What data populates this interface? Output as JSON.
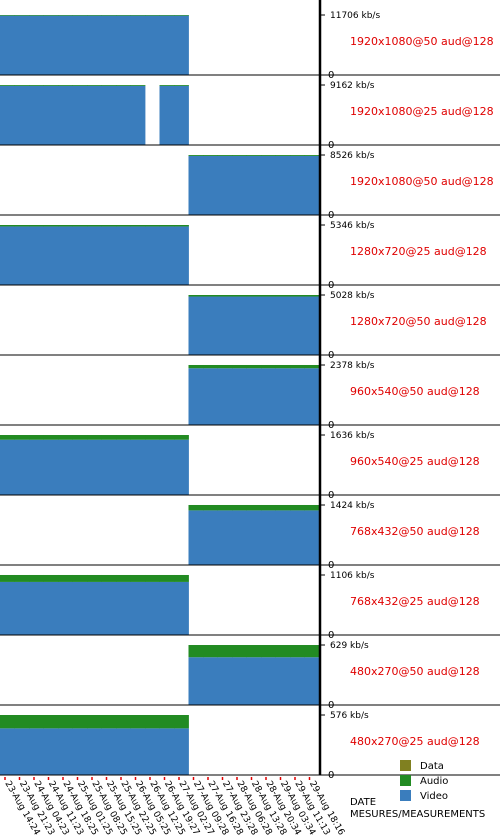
{
  "chart_data": {
    "type": "stacked-bar-panels",
    "x_label": "DATE",
    "y_label": "MESURES/MEASUREMENTS",
    "categories": [
      "23-Aug 14:24",
      "23-Aug 21:23",
      "24-Aug 04:23",
      "24-Aug 11:23",
      "24-Aug 18:25",
      "25-Aug 01:25",
      "25-Aug 08:25",
      "25-Aug 15:25",
      "25-Aug 22:25",
      "26-Aug 05:25",
      "26-Aug 12:25",
      "26-Aug 19:27",
      "27-Aug 02:27",
      "27-Aug 09:28",
      "27-Aug 16:28",
      "27-Aug 23:28",
      "28-Aug 06:28",
      "28-Aug 13:28",
      "28-Aug 20:34",
      "29-Aug 03:34",
      "29-Aug 11:13",
      "29-Aug 18:16"
    ],
    "legend": [
      {
        "name": "Data",
        "color": "#808020"
      },
      {
        "name": "Audio",
        "color": "#228b22"
      },
      {
        "name": "Video",
        "color": "#3a7dbd"
      }
    ],
    "panels": [
      {
        "label": "1920x1080@50 aud@128",
        "ylim": [
          0,
          13657
        ],
        "yticks": [
          0,
          {
            "value": 11706,
            "label": "11706 kb/s"
          }
        ],
        "series": [
          {
            "values": [
              0,
              0,
              0,
              0,
              0,
              0,
              0,
              0,
              0,
              0,
              0,
              0,
              0,
              null,
              null,
              null,
              null,
              null,
              null,
              null,
              null,
              null
            ]
          },
          {
            "values": [
              128,
              128,
              128,
              128,
              128,
              128,
              128,
              128,
              128,
              128,
              128,
              128,
              128,
              null,
              null,
              null,
              null,
              null,
              null,
              null,
              null,
              null
            ]
          },
          {
            "values": [
              11578,
              11578,
              11578,
              11578,
              11578,
              11578,
              11578,
              11578,
              11578,
              11578,
              11578,
              11578,
              11578,
              null,
              null,
              null,
              null,
              null,
              null,
              null,
              null,
              null
            ]
          }
        ]
      },
      {
        "label": "1920x1080@25 aud@128",
        "ylim": [
          0,
          10689
        ],
        "yticks": [
          0,
          {
            "value": 9162,
            "label": "9162 kb/s"
          }
        ],
        "series": [
          {
            "values": [
              0,
              0,
              0,
              0,
              0,
              0,
              0,
              0,
              0,
              0,
              null,
              0,
              0,
              null,
              null,
              null,
              null,
              null,
              null,
              null,
              null,
              null
            ]
          },
          {
            "values": [
              128,
              128,
              128,
              128,
              128,
              128,
              128,
              128,
              128,
              128,
              null,
              128,
              128,
              null,
              null,
              null,
              null,
              null,
              null,
              null,
              null,
              null
            ]
          },
          {
            "values": [
              9034,
              9034,
              9034,
              9034,
              9034,
              9034,
              9034,
              9034,
              9034,
              9034,
              null,
              9034,
              9034,
              null,
              null,
              null,
              null,
              null,
              null,
              null,
              null,
              null
            ]
          }
        ]
      },
      {
        "label": "1920x1080@50 aud@128",
        "ylim": [
          0,
          9947
        ],
        "yticks": [
          0,
          {
            "value": 8526,
            "label": "8526 kb/s"
          }
        ],
        "series": [
          {
            "values": [
              null,
              null,
              null,
              null,
              null,
              null,
              null,
              null,
              null,
              null,
              null,
              null,
              null,
              0,
              0,
              0,
              0,
              0,
              0,
              0,
              0,
              0
            ]
          },
          {
            "values": [
              null,
              null,
              null,
              null,
              null,
              null,
              null,
              null,
              null,
              null,
              null,
              null,
              null,
              128,
              128,
              128,
              128,
              128,
              128,
              128,
              128,
              128
            ]
          },
          {
            "values": [
              null,
              null,
              null,
              null,
              null,
              null,
              null,
              null,
              null,
              null,
              null,
              null,
              null,
              8398,
              8398,
              8398,
              8398,
              8398,
              8398,
              8398,
              8398,
              8398
            ]
          }
        ]
      },
      {
        "label": "1280x720@25 aud@128",
        "ylim": [
          0,
          6237
        ],
        "yticks": [
          0,
          {
            "value": 5346,
            "label": "5346 kb/s"
          }
        ],
        "series": [
          {
            "values": [
              0,
              0,
              0,
              0,
              0,
              0,
              0,
              0,
              0,
              0,
              0,
              0,
              0,
              null,
              null,
              null,
              null,
              null,
              null,
              null,
              null,
              null
            ]
          },
          {
            "values": [
              128,
              128,
              128,
              128,
              128,
              128,
              128,
              128,
              128,
              128,
              128,
              128,
              128,
              null,
              null,
              null,
              null,
              null,
              null,
              null,
              null,
              null
            ]
          },
          {
            "values": [
              5218,
              5218,
              5218,
              5218,
              5218,
              5218,
              5218,
              5218,
              5218,
              5218,
              5218,
              5218,
              5218,
              null,
              null,
              null,
              null,
              null,
              null,
              null,
              null,
              null
            ]
          }
        ]
      },
      {
        "label": "1280x720@50 aud@128",
        "ylim": [
          0,
          5866
        ],
        "yticks": [
          0,
          {
            "value": 5028,
            "label": "5028 kb/s"
          }
        ],
        "series": [
          {
            "values": [
              null,
              null,
              null,
              null,
              null,
              null,
              null,
              null,
              null,
              null,
              null,
              null,
              null,
              0,
              0,
              0,
              0,
              0,
              0,
              0,
              0,
              0
            ]
          },
          {
            "values": [
              null,
              null,
              null,
              null,
              null,
              null,
              null,
              null,
              null,
              null,
              null,
              null,
              null,
              128,
              128,
              128,
              128,
              128,
              128,
              128,
              128,
              128
            ]
          },
          {
            "values": [
              null,
              null,
              null,
              null,
              null,
              null,
              null,
              null,
              null,
              null,
              null,
              null,
              null,
              4900,
              4900,
              4900,
              4900,
              4900,
              4900,
              4900,
              4900,
              4900
            ]
          }
        ]
      },
      {
        "label": "960x540@50 aud@128",
        "ylim": [
          0,
          2774
        ],
        "yticks": [
          0,
          {
            "value": 2378,
            "label": "2378 kb/s"
          }
        ],
        "series": [
          {
            "values": [
              null,
              null,
              null,
              null,
              null,
              null,
              null,
              null,
              null,
              null,
              null,
              null,
              null,
              0,
              0,
              0,
              0,
              0,
              0,
              0,
              0,
              0
            ]
          },
          {
            "values": [
              null,
              null,
              null,
              null,
              null,
              null,
              null,
              null,
              null,
              null,
              null,
              null,
              null,
              128,
              128,
              128,
              128,
              128,
              128,
              128,
              128,
              128
            ]
          },
          {
            "values": [
              null,
              null,
              null,
              null,
              null,
              null,
              null,
              null,
              null,
              null,
              null,
              null,
              null,
              2250,
              2250,
              2250,
              2250,
              2250,
              2250,
              2250,
              2250,
              2250
            ]
          }
        ]
      },
      {
        "label": "960x540@25 aud@128",
        "ylim": [
          0,
          1909
        ],
        "yticks": [
          0,
          {
            "value": 1636,
            "label": "1636 kb/s"
          }
        ],
        "series": [
          {
            "values": [
              0,
              0,
              0,
              0,
              0,
              0,
              0,
              0,
              0,
              0,
              0,
              0,
              0,
              null,
              null,
              null,
              null,
              null,
              null,
              null,
              null,
              null
            ]
          },
          {
            "values": [
              128,
              128,
              128,
              128,
              128,
              128,
              128,
              128,
              128,
              128,
              128,
              128,
              128,
              null,
              null,
              null,
              null,
              null,
              null,
              null,
              null,
              null
            ]
          },
          {
            "values": [
              1508,
              1508,
              1508,
              1508,
              1508,
              1508,
              1508,
              1508,
              1508,
              1508,
              1508,
              1508,
              1508,
              null,
              null,
              null,
              null,
              null,
              null,
              null,
              null,
              null
            ]
          }
        ]
      },
      {
        "label": "768x432@50 aud@128",
        "ylim": [
          0,
          1661
        ],
        "yticks": [
          0,
          {
            "value": 1424,
            "label": "1424 kb/s"
          }
        ],
        "series": [
          {
            "values": [
              null,
              null,
              null,
              null,
              null,
              null,
              null,
              null,
              null,
              null,
              null,
              null,
              null,
              0,
              0,
              0,
              0,
              0,
              0,
              0,
              0,
              0
            ]
          },
          {
            "values": [
              null,
              null,
              null,
              null,
              null,
              null,
              null,
              null,
              null,
              null,
              null,
              null,
              null,
              128,
              128,
              128,
              128,
              128,
              128,
              128,
              128,
              128
            ]
          },
          {
            "values": [
              null,
              null,
              null,
              null,
              null,
              null,
              null,
              null,
              null,
              null,
              null,
              null,
              null,
              1296,
              1296,
              1296,
              1296,
              1296,
              1296,
              1296,
              1296,
              1296
            ]
          }
        ]
      },
      {
        "label": "768x432@25 aud@128",
        "ylim": [
          0,
          1290
        ],
        "yticks": [
          0,
          {
            "value": 1106,
            "label": "1106 kb/s"
          }
        ],
        "series": [
          {
            "values": [
              0,
              0,
              0,
              0,
              0,
              0,
              0,
              0,
              0,
              0,
              0,
              0,
              0,
              null,
              null,
              null,
              null,
              null,
              null,
              null,
              null,
              null
            ]
          },
          {
            "values": [
              128,
              128,
              128,
              128,
              128,
              128,
              128,
              128,
              128,
              128,
              128,
              128,
              128,
              null,
              null,
              null,
              null,
              null,
              null,
              null,
              null,
              null
            ]
          },
          {
            "values": [
              978,
              978,
              978,
              978,
              978,
              978,
              978,
              978,
              978,
              978,
              978,
              978,
              978,
              null,
              null,
              null,
              null,
              null,
              null,
              null,
              null,
              null
            ]
          }
        ]
      },
      {
        "label": "480x270@50 aud@128",
        "ylim": [
          0,
          734
        ],
        "yticks": [
          0,
          {
            "value": 629,
            "label": "629 kb/s"
          }
        ],
        "series": [
          {
            "values": [
              null,
              null,
              null,
              null,
              null,
              null,
              null,
              null,
              null,
              null,
              null,
              null,
              null,
              0,
              0,
              0,
              0,
              0,
              0,
              0,
              0,
              0
            ]
          },
          {
            "values": [
              null,
              null,
              null,
              null,
              null,
              null,
              null,
              null,
              null,
              null,
              null,
              null,
              null,
              128,
              128,
              128,
              128,
              128,
              128,
              128,
              128,
              128
            ]
          },
          {
            "values": [
              null,
              null,
              null,
              null,
              null,
              null,
              null,
              null,
              null,
              null,
              null,
              null,
              null,
              501,
              501,
              501,
              501,
              501,
              501,
              501,
              501,
              501
            ]
          }
        ]
      },
      {
        "label": "480x270@25 aud@128",
        "ylim": [
          0,
          672
        ],
        "yticks": [
          0,
          {
            "value": 576,
            "label": "576 kb/s"
          }
        ],
        "series": [
          {
            "values": [
              0,
              0,
              0,
              0,
              0,
              0,
              0,
              0,
              0,
              0,
              0,
              0,
              0,
              null,
              null,
              null,
              null,
              null,
              null,
              null,
              null,
              null
            ]
          },
          {
            "values": [
              128,
              128,
              128,
              128,
              128,
              128,
              128,
              128,
              128,
              128,
              128,
              128,
              128,
              null,
              null,
              null,
              null,
              null,
              null,
              null,
              null,
              null
            ]
          },
          {
            "values": [
              448,
              448,
              448,
              448,
              448,
              448,
              448,
              448,
              448,
              448,
              448,
              448,
              448,
              null,
              null,
              null,
              null,
              null,
              null,
              null,
              null,
              null
            ]
          }
        ]
      }
    ]
  }
}
